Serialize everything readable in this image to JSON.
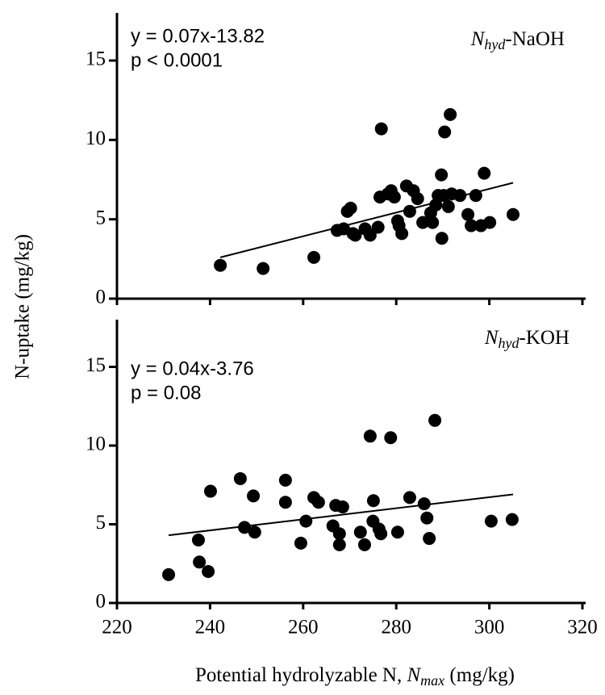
{
  "chart_data": [
    {
      "type": "scatter",
      "ylabel": "N-uptake (mg/kg)",
      "annotation": [
        "N",
        "hyd",
        "-NaOH"
      ],
      "equation": "y = 0.07x-13.82",
      "p_value": "p < 0.0001",
      "color": "#000000",
      "xlim": [
        220,
        320
      ],
      "xticks": [
        220,
        240,
        260,
        280,
        300,
        320
      ],
      "ylim": [
        0,
        18
      ],
      "yticks": [
        0,
        5,
        10,
        15
      ],
      "x": [
        242.2,
        251.4,
        262.3,
        276.8,
        290.4,
        291.6,
        267.3,
        268.7,
        269.5,
        270.2,
        270.7,
        271.2,
        273.3,
        274.4,
        276.1,
        276.5,
        278.2,
        278.9,
        279.6,
        280.3,
        280.6,
        281.2,
        282.2,
        282.9,
        283.7,
        284.6,
        285.7,
        287.4,
        287.8,
        288.5,
        289.0,
        289.7,
        290.2,
        289.8,
        291.2,
        291.9,
        293.7,
        295.4,
        296.1,
        297.1,
        298.2,
        298.9,
        300.1,
        305.1
      ],
      "values": [
        2.1,
        1.9,
        2.6,
        10.7,
        10.5,
        11.6,
        4.3,
        4.4,
        5.5,
        5.7,
        4.1,
        4.0,
        4.4,
        4.0,
        4.5,
        6.4,
        6.6,
        6.8,
        6.4,
        4.9,
        4.6,
        4.1,
        7.1,
        5.5,
        6.8,
        6.3,
        4.8,
        5.4,
        4.8,
        5.9,
        6.5,
        7.8,
        6.5,
        3.8,
        5.8,
        6.6,
        6.5,
        5.3,
        4.6,
        6.5,
        4.6,
        7.9,
        4.8,
        5.3
      ],
      "fit": {
        "x": [
          242.2,
          305.1
        ],
        "y": [
          2.6,
          7.3
        ]
      }
    },
    {
      "type": "scatter",
      "annotation": [
        "N",
        "hyd",
        "-KOH"
      ],
      "equation": "y = 0.04x-3.76",
      "p_value": "p = 0.08",
      "color": "#000000",
      "xlabel": [
        "Potential hydrolyzable N, ",
        "N",
        "max",
        " (mg/kg)"
      ],
      "xlim": [
        220,
        320
      ],
      "xticks": [
        220,
        240,
        260,
        280,
        300,
        320
      ],
      "ylim": [
        0,
        18
      ],
      "yticks": [
        0,
        5,
        10,
        15
      ],
      "x": [
        231.1,
        240.1,
        237.5,
        237.7,
        239.6,
        246.5,
        247.4,
        249.3,
        249.6,
        256.2,
        256.2,
        259.5,
        260.6,
        262.3,
        263.3,
        266.4,
        267.0,
        267.8,
        267.8,
        268.5,
        272.3,
        273.2,
        274.4,
        275.0,
        275.1,
        276.3,
        276.7,
        278.8,
        280.3,
        282.9,
        286.0,
        286.6,
        287.1,
        288.3,
        300.4,
        304.9
      ],
      "values": [
        1.8,
        7.1,
        4.0,
        2.6,
        2.0,
        7.9,
        4.8,
        6.8,
        4.5,
        7.8,
        6.4,
        3.8,
        5.2,
        6.7,
        6.4,
        4.9,
        6.2,
        4.4,
        3.7,
        6.1,
        4.5,
        3.7,
        10.6,
        5.2,
        6.5,
        4.7,
        4.4,
        10.5,
        4.5,
        6.7,
        6.3,
        5.4,
        4.1,
        11.6,
        5.2,
        5.3
      ],
      "fit": {
        "x": [
          231.1,
          305.1
        ],
        "y": [
          4.3,
          6.9
        ]
      }
    }
  ]
}
